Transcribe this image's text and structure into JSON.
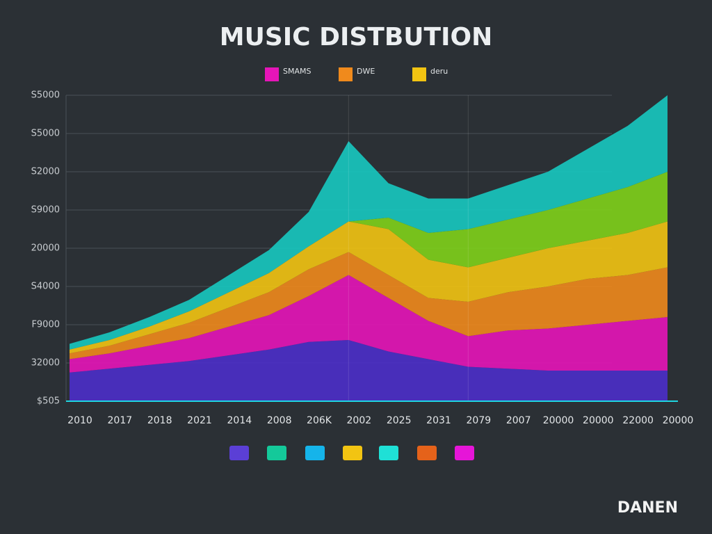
{
  "chart_data": {
    "type": "stacked_area",
    "title": "MUSIC DISTBUTION",
    "categories": [
      "2010",
      "2017",
      "2018",
      "2021",
      "2014",
      "2008",
      "206K",
      "2002",
      "2025",
      "2031",
      "2079",
      "2007",
      "20000",
      "20000",
      "22000",
      "20000"
    ],
    "series": [
      {
        "color": "#4b2fc9",
        "values": [
          0.75,
          0.85,
          0.95,
          1.05,
          1.2,
          1.35,
          1.55,
          1.6,
          1.3,
          1.1,
          0.9,
          0.85,
          0.8,
          0.8,
          0.8,
          0.8
        ]
      },
      {
        "name": "SMAMS",
        "color": "#e615b8",
        "values": [
          0.35,
          0.4,
          0.5,
          0.6,
          0.75,
          0.9,
          1.2,
          1.7,
          1.4,
          1.0,
          0.8,
          1.0,
          1.1,
          1.2,
          1.3,
          1.4
        ]
      },
      {
        "name": "DWE",
        "color": "#f08a1c",
        "values": [
          0.15,
          0.2,
          0.3,
          0.4,
          0.5,
          0.6,
          0.7,
          0.6,
          0.6,
          0.6,
          0.9,
          1.0,
          1.1,
          1.2,
          1.2,
          1.3
        ]
      },
      {
        "name": "deru",
        "color": "#f2c412",
        "values": [
          0.1,
          0.15,
          0.2,
          0.3,
          0.4,
          0.5,
          0.6,
          0.8,
          1.2,
          1.0,
          0.9,
          0.9,
          1.0,
          1.0,
          1.1,
          1.2
        ]
      },
      {
        "color": "#7fd11a",
        "values": [
          0,
          0,
          0,
          0,
          0,
          0,
          0,
          0,
          0.3,
          0.7,
          1.0,
          1.0,
          1.0,
          1.1,
          1.2,
          1.3
        ]
      },
      {
        "color": "#17c9c0",
        "values": [
          0.15,
          0.2,
          0.25,
          0.3,
          0.45,
          0.6,
          0.9,
          2.1,
          0.9,
          0.9,
          0.8,
          0.9,
          1.0,
          1.3,
          1.6,
          2.0
        ]
      }
    ],
    "ylim": [
      0,
      8
    ],
    "yticks": [
      {
        "value": 0,
        "label": "$505"
      },
      {
        "value": 1,
        "label": "32000"
      },
      {
        "value": 2,
        "label": "F9000"
      },
      {
        "value": 3,
        "label": "S4000"
      },
      {
        "value": 4,
        "label": "20000"
      },
      {
        "value": 5,
        "label": "S9000"
      },
      {
        "value": 6,
        "label": "S2000"
      },
      {
        "value": 7,
        "label": "S5000"
      },
      {
        "value": 8,
        "label": "S5000"
      }
    ],
    "grid": true,
    "brand": "DANEN"
  }
}
